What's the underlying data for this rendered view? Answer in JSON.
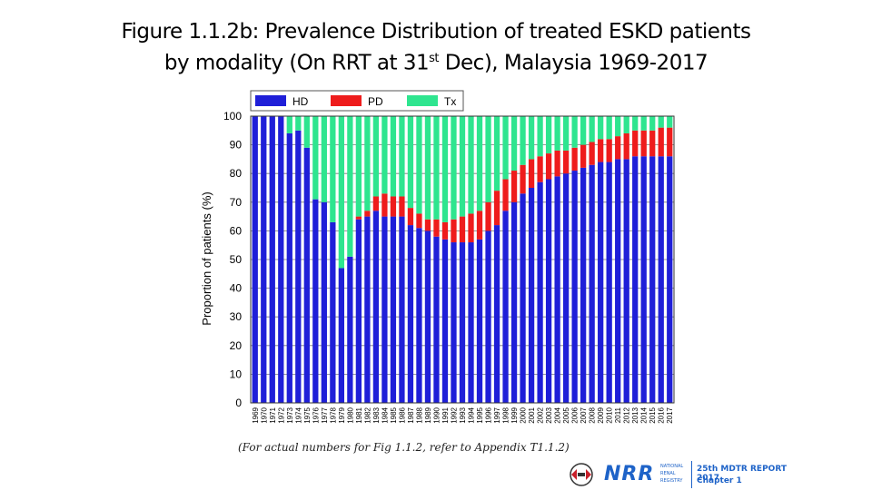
{
  "title": {
    "line1": "Figure 1.1.2b: Prevalence Distribution of treated ESKD patients",
    "line2_pre": "by modality (On RRT at 31",
    "line2_sup": "st",
    "line2_post": " Dec), Malaysia 1969-2017"
  },
  "note": "(For actual numbers for Fig 1.1.2, refer to Appendix T1.1.2)",
  "footer": {
    "logo_letters": "NRR",
    "registry_small": [
      "NATIONAL",
      "RENAL",
      "REGISTRY"
    ],
    "report_title": "25th MDTR REPORT 2017",
    "chapter": "Chapter 1"
  },
  "colors": {
    "HD": "#1f1fd8",
    "PD": "#ee1c1c",
    "Tx": "#2ee58f",
    "logo_blue": "#1e63c8"
  },
  "chart_data": {
    "type": "bar",
    "stacked": true,
    "ylabel": "Proportion  of  patients (%)",
    "xlabel": "",
    "ylim": [
      0,
      100
    ],
    "yticks": [
      0,
      10,
      20,
      30,
      40,
      50,
      60,
      70,
      80,
      90,
      100
    ],
    "grid": true,
    "legend": "top",
    "categories": [
      "1969",
      "1970",
      "1971",
      "1972",
      "1973",
      "1974",
      "1975",
      "1976",
      "1977",
      "1978",
      "1979",
      "1980",
      "1981",
      "1982",
      "1983",
      "1984",
      "1985",
      "1986",
      "1987",
      "1988",
      "1989",
      "1990",
      "1991",
      "1992",
      "1993",
      "1994",
      "1995",
      "1996",
      "1997",
      "1998",
      "1999",
      "2000",
      "2001",
      "2002",
      "2003",
      "2004",
      "2005",
      "2006",
      "2007",
      "2008",
      "2009",
      "2010",
      "2011",
      "2012",
      "2013",
      "2014",
      "2015",
      "2016",
      "2017"
    ],
    "series": [
      {
        "name": "HD",
        "values": [
          100,
          100,
          100,
          100,
          94,
          95,
          89,
          71,
          70,
          63,
          47,
          51,
          64,
          65,
          67,
          65,
          65,
          65,
          62,
          61,
          60,
          58,
          57,
          56,
          56,
          56,
          57,
          60,
          62,
          67,
          70,
          73,
          75,
          77,
          78,
          79,
          80,
          81,
          82,
          83,
          84,
          84,
          85,
          85,
          86,
          86,
          86,
          86,
          86
        ]
      },
      {
        "name": "PD",
        "values": [
          0,
          0,
          0,
          0,
          0,
          0,
          0,
          0,
          0,
          0,
          0,
          0,
          1,
          2,
          5,
          8,
          7,
          7,
          6,
          5,
          4,
          6,
          6,
          8,
          9,
          10,
          10,
          10,
          12,
          11,
          11,
          10,
          10,
          9,
          9,
          9,
          8,
          8,
          8,
          8,
          8,
          8,
          8,
          9,
          9,
          9,
          9,
          10,
          10
        ]
      },
      {
        "name": "Tx",
        "values": [
          0,
          0,
          0,
          0,
          6,
          5,
          11,
          29,
          30,
          37,
          53,
          49,
          35,
          33,
          28,
          27,
          28,
          28,
          32,
          34,
          36,
          36,
          37,
          36,
          35,
          34,
          33,
          30,
          26,
          22,
          19,
          17,
          15,
          14,
          13,
          12,
          12,
          11,
          10,
          9,
          8,
          8,
          7,
          6,
          5,
          5,
          5,
          4,
          4
        ]
      }
    ]
  }
}
